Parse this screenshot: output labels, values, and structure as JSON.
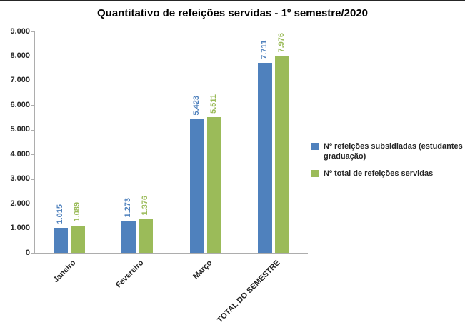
{
  "chart_data": {
    "type": "bar",
    "title": "Quantitativo de refeições servidas - 1º semestre/2020",
    "categories": [
      "Janeiro",
      "Fevereiro",
      "Março",
      "TOTAL DO SEMESTRE"
    ],
    "series": [
      {
        "name": "Nº refeições subsidiadas (estudantes graduação)",
        "color": "#4F81BD",
        "values": [
          1015,
          1273,
          5423,
          7711
        ],
        "labels": [
          "1.015",
          "1.273",
          "5.423",
          "7.711"
        ]
      },
      {
        "name": "Nº total de refeições servidas",
        "color": "#9BBB59",
        "values": [
          1089,
          1376,
          5511,
          7976
        ],
        "labels": [
          "1.089",
          "1.376",
          "5.511",
          "7.976"
        ]
      }
    ],
    "xlabel": "",
    "ylabel": "",
    "ylim": [
      0,
      9000
    ],
    "ytick_step": 1000,
    "ytick_labels": [
      "0",
      "1.000",
      "2.000",
      "3.000",
      "4.000",
      "5.000",
      "6.000",
      "7.000",
      "8.000",
      "9.000"
    ],
    "grid": false,
    "legend_position": "right",
    "axis_color": "#ADADAD",
    "text_color": "#262626"
  }
}
